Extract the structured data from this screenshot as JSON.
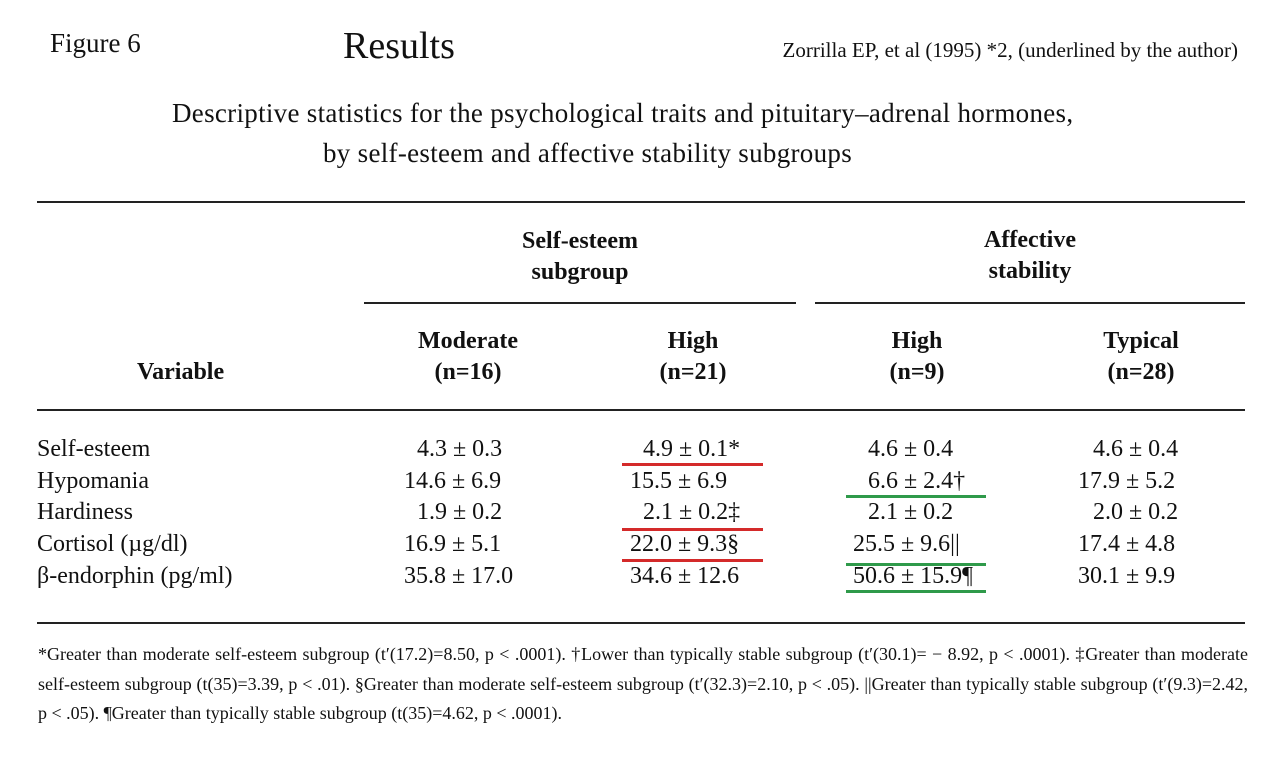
{
  "header": {
    "figure_label": "Figure 6",
    "title": "Results",
    "citation": "Zorrilla EP, et al (1995) *2, (underlined by the author)"
  },
  "caption": {
    "line1": "Descriptive statistics for the psychological traits and pituitary–adrenal hormones,",
    "line2": "by self-esteem and affective stability subgroups"
  },
  "table": {
    "group_headers": [
      {
        "line1": "Self-esteem",
        "line2": "subgroup"
      },
      {
        "line1": "Affective",
        "line2": "stability"
      }
    ],
    "variable_header": "Variable",
    "columns": [
      {
        "label": "Moderate",
        "n": "(n=16)"
      },
      {
        "label": "High",
        "n": "(n=21)"
      },
      {
        "label": "High",
        "n": "(n=9)"
      },
      {
        "label": "Typical",
        "n": "(n=28)"
      }
    ],
    "rows": [
      {
        "variable": "Self-esteem",
        "values": [
          "4.3 ± 0.3",
          "4.9 ± 0.1*",
          "4.6 ± 0.4",
          "4.6 ± 0.4"
        ]
      },
      {
        "variable": "Hypomania",
        "values": [
          "14.6 ± 6.9",
          "15.5 ± 6.9",
          "6.6 ± 2.4†",
          "17.9 ± 5.2"
        ]
      },
      {
        "variable": "Hardiness",
        "values": [
          "1.9 ± 0.2",
          "2.1 ± 0.2‡",
          "2.1 ± 0.2",
          "2.0 ± 0.2"
        ]
      },
      {
        "variable": "Cortisol (µg/dl)",
        "values": [
          "16.9 ± 5.1",
          "22.0 ± 9.3§",
          "25.5 ± 9.6||",
          "17.4 ± 4.8"
        ]
      },
      {
        "variable": "β-endorphin (pg/ml)",
        "values": [
          "35.8 ± 17.0",
          "34.6 ± 12.6",
          "50.6 ± 15.9¶",
          "30.1 ± 9.9"
        ]
      }
    ]
  },
  "highlight_colors": {
    "red": "#d42a2a",
    "green": "#2f9a4a"
  },
  "footnote": "*Greater than moderate self-esteem subgroup (t′(17.2)=8.50, p < .0001). †Lower than typically stable subgroup (t′(30.1)= − 8.92, p < .0001). ‡Greater than moderate self-esteem subgroup (t(35)=3.39, p < .01). §Greater than moderate self-esteem subgroup (t′(32.3)=2.10, p < .05). ||Greater than typically stable subgroup (t′(9.3)=2.42, p < .05). ¶Greater than typically stable subgroup (t(35)=4.62, p < .0001)."
}
